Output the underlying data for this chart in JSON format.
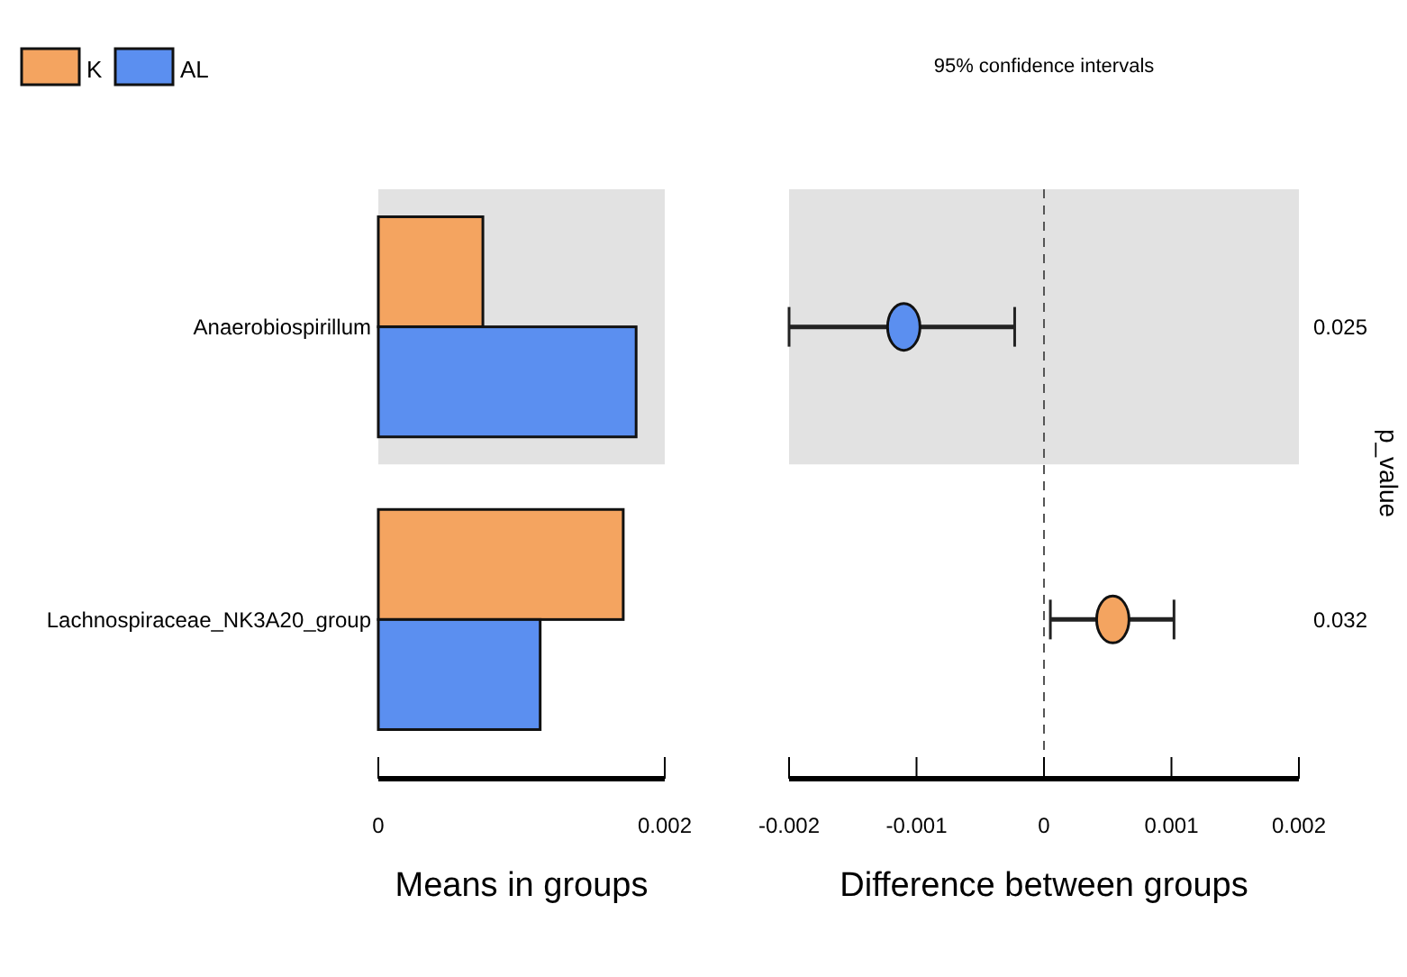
{
  "chart_data": [
    {
      "type": "bar",
      "orientation": "horizontal",
      "categories": [
        "Anaerobiospirillum",
        "Lachnospiraceae_NK3A20_group"
      ],
      "series": [
        {
          "name": "K",
          "color": "#f4a460",
          "values": [
            0.00073,
            0.00171
          ]
        },
        {
          "name": "AL",
          "color": "#5b8ff0",
          "values": [
            0.0018,
            0.00113
          ]
        }
      ],
      "xlim": [
        0,
        0.002
      ],
      "xticks": [
        0,
        0.002
      ],
      "xlabel": "Means in groups",
      "legend": "top left",
      "bands": [
        {
          "axis": "y",
          "from": "Anaerobiospirillum",
          "to": "Anaerobiospirillum",
          "color": "#e2e2e2"
        }
      ]
    },
    {
      "type": "scatter",
      "orientation": "horizontal",
      "categories": [
        "Anaerobiospirillum",
        "Lachnospiraceae_NK3A20_group"
      ],
      "title": "95% confidence intervals",
      "values": [
        -0.0011,
        0.00054
      ],
      "colors": [
        "#5b8ff0",
        "#f4a460"
      ],
      "errors": [
        [
          -0.002,
          -0.00023
        ],
        [
          5e-05,
          0.00102
        ]
      ],
      "marker": "circle",
      "xlim": [
        -0.002,
        0.002
      ],
      "xticks": [
        -0.002,
        -0.001,
        0,
        0.001,
        0.002
      ],
      "xlabel": "Difference between groups",
      "y2_categories": [
        "0.025",
        "0.032"
      ],
      "y2label": "p_value",
      "tick_labels": "x",
      "ref_lines": [
        {
          "axis": "x",
          "value": 0,
          "line_style": "dashed",
          "color": "#555555"
        }
      ],
      "bands": [
        {
          "axis": "y",
          "from": "Anaerobiospirillum",
          "to": "Anaerobiospirillum",
          "color": "#e2e2e2"
        }
      ]
    }
  ]
}
